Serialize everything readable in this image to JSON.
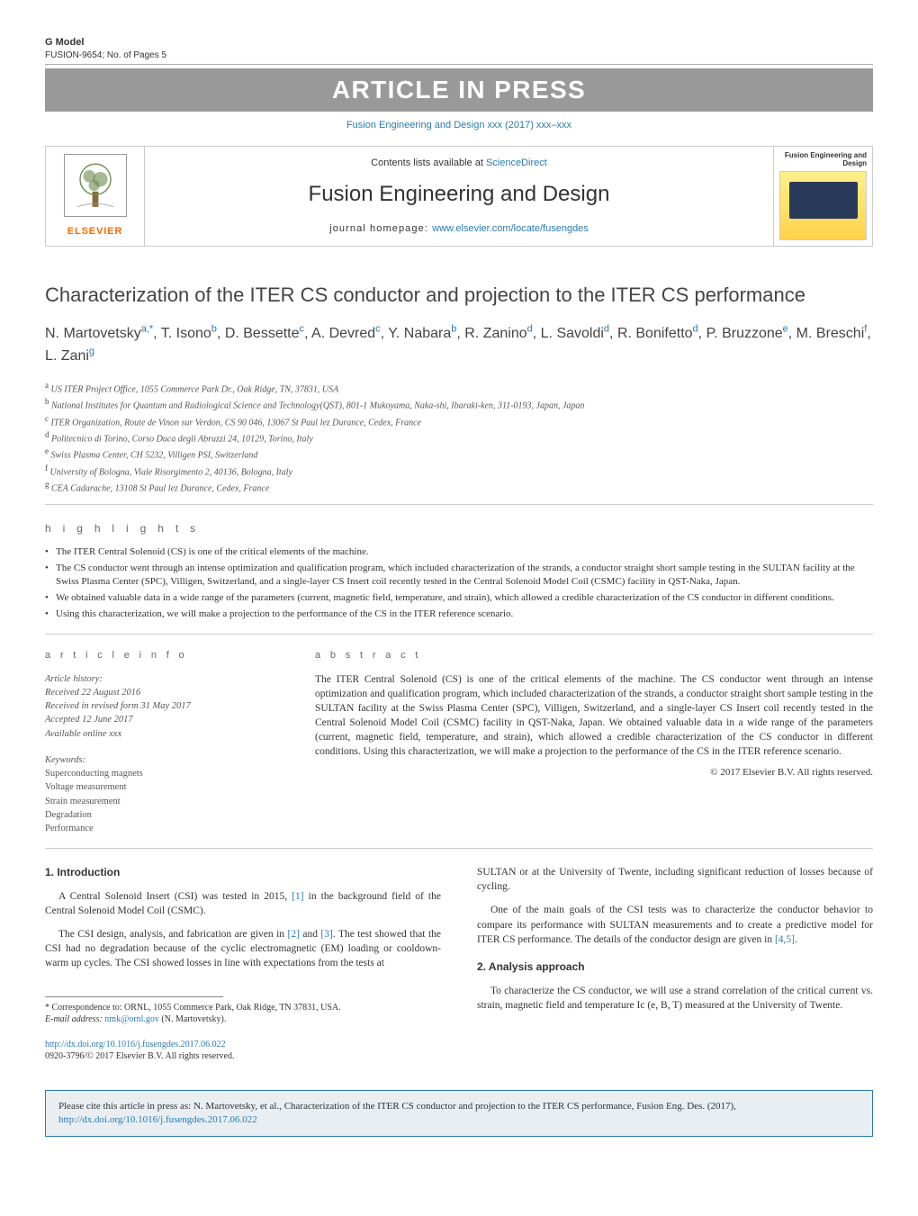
{
  "top": {
    "gmodel_label": "G Model",
    "gmodel_sub": "FUSION-9654;   No. of Pages 5",
    "aip_banner": "ARTICLE IN PRESS",
    "journal_ref": "Fusion Engineering and Design xxx (2017) xxx–xxx"
  },
  "masthead": {
    "elsevier": "ELSEVIER",
    "contents": "Contents lists available at ",
    "sciencedirect": "ScienceDirect",
    "journal_title": "Fusion Engineering and Design",
    "homepage_label": "journal homepage: ",
    "homepage_url": "www.elsevier.com/locate/fusengdes",
    "cover_label": "Fusion Engineering and Design"
  },
  "article": {
    "title": "Characterization of the ITER CS conductor and projection to the ITER CS performance",
    "authors_html": [
      {
        "name": "N. Martovetsky",
        "sup": "a,*"
      },
      {
        "name": "T. Isono",
        "sup": "b"
      },
      {
        "name": "D. Bessette",
        "sup": "c"
      },
      {
        "name": "A. Devred",
        "sup": "c"
      },
      {
        "name": "Y. Nabara",
        "sup": "b"
      },
      {
        "name": "R. Zanino",
        "sup": "d"
      },
      {
        "name": "L. Savoldi",
        "sup": "d"
      },
      {
        "name": "R. Bonifetto",
        "sup": "d"
      },
      {
        "name": "P. Bruzzone",
        "sup": "e"
      },
      {
        "name": "M. Breschi",
        "sup": "f"
      },
      {
        "name": "L. Zani",
        "sup": "g"
      }
    ],
    "affiliations": [
      {
        "lbl": "a",
        "text": "US ITER Project Office, 1055 Commerce Park Dr., Oak Ridge, TN, 37831, USA"
      },
      {
        "lbl": "b",
        "text": "National Institutes for Quantum and Radiological Science and Technology(QST), 801-1 Mukoyama, Naka-shi, Ibaraki-ken, 311-0193, Japan, Japan"
      },
      {
        "lbl": "c",
        "text": "ITER Organization, Route de Vinon sur Verdon, CS 90 046, 13067 St Paul lez Durance, Cedex, France"
      },
      {
        "lbl": "d",
        "text": "Politecnico di Torino, Corso Duca degli Abruzzi 24, 10129, Torino, Italy"
      },
      {
        "lbl": "e",
        "text": "Swiss Plasma Center, CH 5232, Villigen PSI, Switzerland"
      },
      {
        "lbl": "f",
        "text": "University of Bologna, Viale Risorgimento 2, 40136, Bologna, Italy"
      },
      {
        "lbl": "g",
        "text": "CEA Cadarache, 13108 St Paul lez Durance, Cedex, France"
      }
    ]
  },
  "highlights": {
    "head": "h i g h l i g h t s",
    "items": [
      "The ITER Central Solenoid (CS) is one of the critical elements of the machine.",
      "The CS conductor went through an intense optimization and qualification program, which included characterization of the strands, a conductor straight short sample testing in the SULTAN facility at the Swiss Plasma Center (SPC), Villigen, Switzerland, and a single-layer CS Insert coil recently tested in the Central Solenoid Model Coil (CSMC) facility in QST-Naka, Japan.",
      "We obtained valuable data in a wide range of the parameters (current, magnetic field, temperature, and strain), which allowed a credible characterization of the CS conductor in different conditions.",
      "Using this characterization, we will make a projection to the performance of the CS in the ITER reference scenario."
    ]
  },
  "info": {
    "info_head": "a r t i c l e    i n f o",
    "history_label": "Article history:",
    "history": [
      "Received 22 August 2016",
      "Received in revised form 31 May 2017",
      "Accepted 12 June 2017",
      "Available online xxx"
    ],
    "keywords_label": "Keywords:",
    "keywords": [
      "Superconducting magnets",
      "Voltage measurement",
      "Strain measurement",
      "Degradation",
      "Performance"
    ]
  },
  "abstract": {
    "head": "a b s t r a c t",
    "text": "The ITER Central Solenoid (CS) is one of the critical elements of the machine. The CS conductor went through an intense optimization and qualification program, which included characterization of the strands, a conductor straight short sample testing in the SULTAN facility at the Swiss Plasma Center (SPC), Villigen, Switzerland, and a single-layer CS Insert coil recently tested in the Central Solenoid Model Coil (CSMC) facility in QST-Naka, Japan. We obtained valuable data in a wide range of the parameters (current, magnetic field, temperature, and strain), which allowed a credible characterization of the CS conductor in different conditions. Using this characterization, we will make a projection to the performance of the CS in the ITER reference scenario.",
    "copyright": "© 2017 Elsevier B.V. All rights reserved."
  },
  "body": {
    "sec1_head": "1.  Introduction",
    "sec1_p1_a": "A Central Solenoid Insert (CSI) was tested in 2015, ",
    "sec1_p1_ref1": "[1]",
    "sec1_p1_b": " in the background field of the Central Solenoid Model Coil (CSMC).",
    "sec1_p2_a": "The CSI design, analysis, and fabrication are given in ",
    "sec1_p2_ref2": "[2]",
    "sec1_p2_and": " and ",
    "sec1_p2_ref3": "[3]",
    "sec1_p2_b": ". The test showed that the CSI had no degradation because of the cyclic electromagnetic (EM) loading or cooldown-warm up cycles. The CSI showed losses in line with expectations from the tests at",
    "col2_p1": "SULTAN or at the University of Twente, including significant reduction of losses because of cycling.",
    "col2_p2_a": "One of the main goals of the CSI tests was to characterize the conductor behavior to compare its performance with SULTAN measurements and to create a predictive model for ITER CS performance. The details of the conductor design are given in ",
    "col2_p2_ref45": "[4,5]",
    "col2_p2_b": ".",
    "sec2_head": "2.  Analysis approach",
    "sec2_p1": "To characterize the CS conductor, we will use a strand correlation of the critical current vs. strain, magnetic field and temperature Ic (e, B, T) measured at the University of Twente."
  },
  "footnote": {
    "corr": "* Correspondence to: ORNL, 1055 Commerce Park, Oak Ridge, TN 37831, USA.",
    "email_label": "E-mail address: ",
    "email": "nmk@ornl.gov",
    "email_tail": " (N. Martovetsky).",
    "doi": "http://dx.doi.org/10.1016/j.fusengdes.2017.06.022",
    "issn": "0920-3796/© 2017 Elsevier B.V. All rights reserved."
  },
  "cite": {
    "text_a": "Please cite this article in press as: N. Martovetsky, et al., Characterization of the ITER CS conductor and projection to the ITER CS performance, Fusion Eng. Des. (2017), ",
    "url": "http://dx.doi.org/10.1016/j.fusengdes.2017.06.022"
  },
  "colors": {
    "link": "#2a7ab0",
    "banner_bg": "#999999",
    "elsevier_orange": "#ff6b00",
    "rule": "#cccccc"
  }
}
